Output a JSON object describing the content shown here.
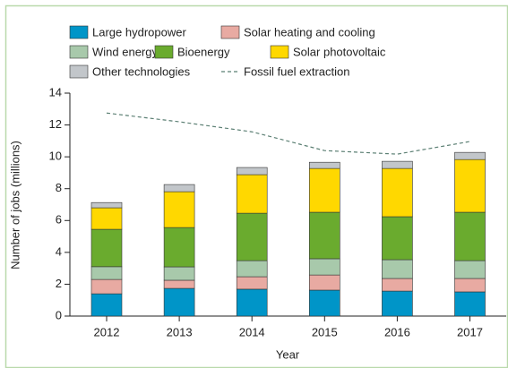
{
  "chart_data": {
    "type": "bar",
    "stacked": true,
    "categories": [
      "2012",
      "2013",
      "2014",
      "2015",
      "2016",
      "2017"
    ],
    "series": [
      {
        "name": "Large hydropower",
        "color": "#0095c8",
        "values": [
          1.4,
          1.74,
          1.69,
          1.63,
          1.57,
          1.52
        ]
      },
      {
        "name": "Solar heating and cooling",
        "color": "#e8aaa2",
        "values": [
          0.9,
          0.51,
          0.78,
          0.95,
          0.79,
          0.84
        ]
      },
      {
        "name": "Wind energy",
        "color": "#a8c9ab",
        "values": [
          0.8,
          0.84,
          1.01,
          1.02,
          1.18,
          1.12
        ]
      },
      {
        "name": "Bioenergy",
        "color": "#6aab2e",
        "values": [
          2.35,
          2.47,
          2.98,
          2.92,
          2.7,
          3.04
        ]
      },
      {
        "name": "Solar photovoltaic",
        "color": "#ffd800",
        "values": [
          1.35,
          2.25,
          2.42,
          2.75,
          3.03,
          3.31
        ]
      },
      {
        "name": "Other technologies",
        "color": "#c2c6ca",
        "values": [
          0.33,
          0.45,
          0.45,
          0.39,
          0.45,
          0.45
        ]
      },
      {
        "name": "Fossil fuel extraction",
        "color": "#5b7f73",
        "type": "line",
        "dashed": true,
        "values": [
          12.75,
          12.2,
          11.57,
          10.39,
          10.17,
          10.96
        ]
      }
    ],
    "xlabel": "Year",
    "ylabel": "Number of jobs (millions)",
    "ylim": [
      0,
      14
    ],
    "yticks": [
      0,
      2,
      4,
      6,
      8,
      10,
      12,
      14
    ]
  }
}
